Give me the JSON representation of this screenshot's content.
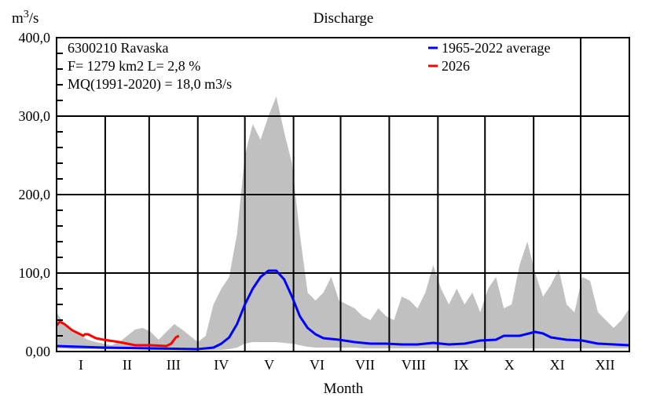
{
  "chart_data": {
    "type": "area",
    "title": "Discharge",
    "ylabel": "m3/s",
    "ylabel_base": "m",
    "ylabel_sup": "3",
    "ylabel_rest": "/s",
    "xlabel": "Month",
    "ylim": [
      0,
      400
    ],
    "xlim_days": [
      0,
      365
    ],
    "ytick_labels": [
      "0,00",
      "100,0",
      "200,0",
      "300,0",
      "400,0"
    ],
    "ytick_values": [
      0,
      100,
      200,
      300,
      400
    ],
    "month_labels": [
      "I",
      "II",
      "III",
      "IV",
      "V",
      "VI",
      "VII",
      "VIII",
      "IX",
      "X",
      "XI",
      "XII"
    ],
    "month_days": [
      31,
      28,
      31,
      30,
      31,
      30,
      31,
      31,
      30,
      31,
      30,
      31
    ],
    "info": [
      "6300210 Ravaska",
      "F=   1279 km2 L=  2,8 %",
      "MQ(1991-2020) = 18,0 m3/s"
    ],
    "legend": [
      {
        "name": "1965-2022 average",
        "color": "#0000ff"
      },
      {
        "name": "2026",
        "color": "#ff0000"
      }
    ],
    "legend_placement": "top-right",
    "range_band": {
      "color": "#c0c0c0",
      "day": [
        0,
        5,
        10,
        15,
        20,
        25,
        30,
        35,
        40,
        45,
        50,
        55,
        60,
        65,
        70,
        75,
        80,
        85,
        90,
        95,
        100,
        105,
        110,
        115,
        120,
        125,
        130,
        135,
        140,
        145,
        150,
        155,
        160,
        165,
        170,
        175,
        180,
        185,
        190,
        195,
        200,
        205,
        210,
        215,
        220,
        225,
        230,
        235,
        240,
        245,
        250,
        255,
        260,
        265,
        270,
        275,
        280,
        285,
        290,
        295,
        300,
        305,
        310,
        315,
        320,
        325,
        330,
        335,
        340,
        345,
        350,
        355,
        360,
        365
      ],
      "max": [
        50,
        35,
        25,
        20,
        15,
        12,
        10,
        8,
        12,
        20,
        28,
        30,
        25,
        15,
        25,
        35,
        28,
        20,
        12,
        20,
        60,
        80,
        95,
        150,
        250,
        290,
        270,
        300,
        325,
        280,
        240,
        150,
        75,
        65,
        75,
        95,
        65,
        60,
        55,
        45,
        40,
        55,
        45,
        40,
        70,
        65,
        55,
        75,
        110,
        80,
        60,
        80,
        60,
        75,
        50,
        80,
        95,
        55,
        60,
        110,
        140,
        100,
        70,
        85,
        105,
        60,
        50,
        95,
        90,
        50,
        40,
        30,
        40,
        55
      ],
      "min": [
        4,
        4,
        3,
        3,
        3,
        3,
        3,
        3,
        3,
        3,
        3,
        3,
        2,
        2,
        2,
        2,
        2,
        2,
        2,
        2,
        2,
        2,
        3,
        5,
        10,
        12,
        12,
        12,
        12,
        11,
        10,
        8,
        6,
        5,
        5,
        5,
        5,
        5,
        5,
        4,
        4,
        4,
        4,
        4,
        4,
        4,
        4,
        4,
        4,
        4,
        4,
        4,
        4,
        4,
        4,
        4,
        4,
        4,
        4,
        4,
        4,
        4,
        4,
        4,
        4,
        4,
        4,
        4,
        4,
        4,
        4,
        4,
        4,
        4
      ]
    },
    "series": [
      {
        "name": "1965-2022 average",
        "color": "#0000ff",
        "day": [
          0,
          30,
          60,
          90,
          100,
          105,
          110,
          115,
          120,
          125,
          130,
          135,
          140,
          145,
          150,
          155,
          160,
          165,
          170,
          180,
          190,
          200,
          210,
          220,
          230,
          240,
          250,
          260,
          270,
          280,
          285,
          295,
          305,
          310,
          315,
          325,
          335,
          345,
          365
        ],
        "values": [
          7,
          5,
          4,
          3,
          5,
          10,
          18,
          35,
          60,
          80,
          95,
          103,
          103,
          92,
          70,
          45,
          30,
          22,
          17,
          15,
          12,
          10,
          10,
          9,
          9,
          11,
          9,
          10,
          14,
          15,
          20,
          20,
          25,
          23,
          18,
          15,
          14,
          10,
          8
        ]
      },
      {
        "name": "2026",
        "color": "#ff0000",
        "day": [
          0,
          2,
          5,
          10,
          15,
          17,
          18,
          20,
          25,
          30,
          40,
          50,
          60,
          70,
          73,
          76,
          78
        ],
        "values": [
          33,
          38,
          35,
          27,
          22,
          20,
          22,
          22,
          17,
          15,
          12,
          8,
          8,
          7,
          10,
          18,
          20
        ]
      }
    ]
  }
}
